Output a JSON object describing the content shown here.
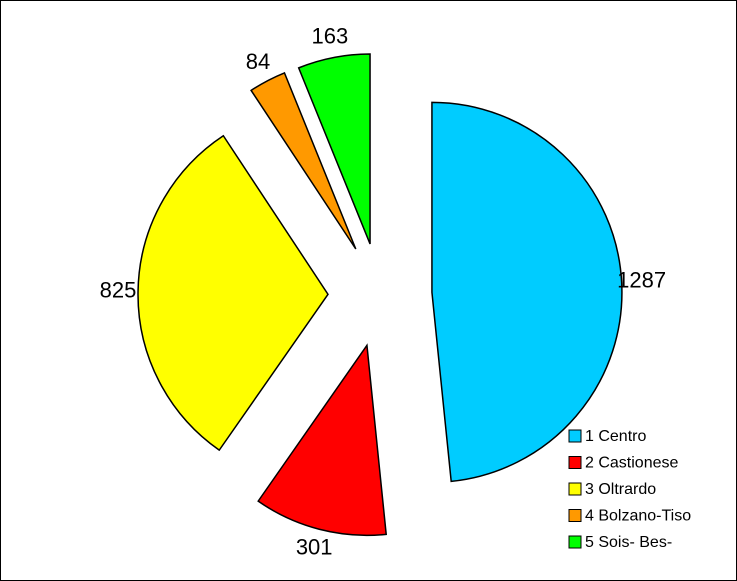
{
  "chart_data": {
    "type": "pie",
    "categories": [
      "1 Centro",
      "2 Castionese",
      "3 Oltrardo",
      "4 Bolzano-Tiso",
      "5 Sois- Bes-"
    ],
    "values": [
      1287,
      301,
      825,
      84,
      163
    ],
    "colors": [
      "#00ccff",
      "#ff0000",
      "#ffff00",
      "#ff9900",
      "#00ff00"
    ],
    "legend": "bottom-right"
  }
}
